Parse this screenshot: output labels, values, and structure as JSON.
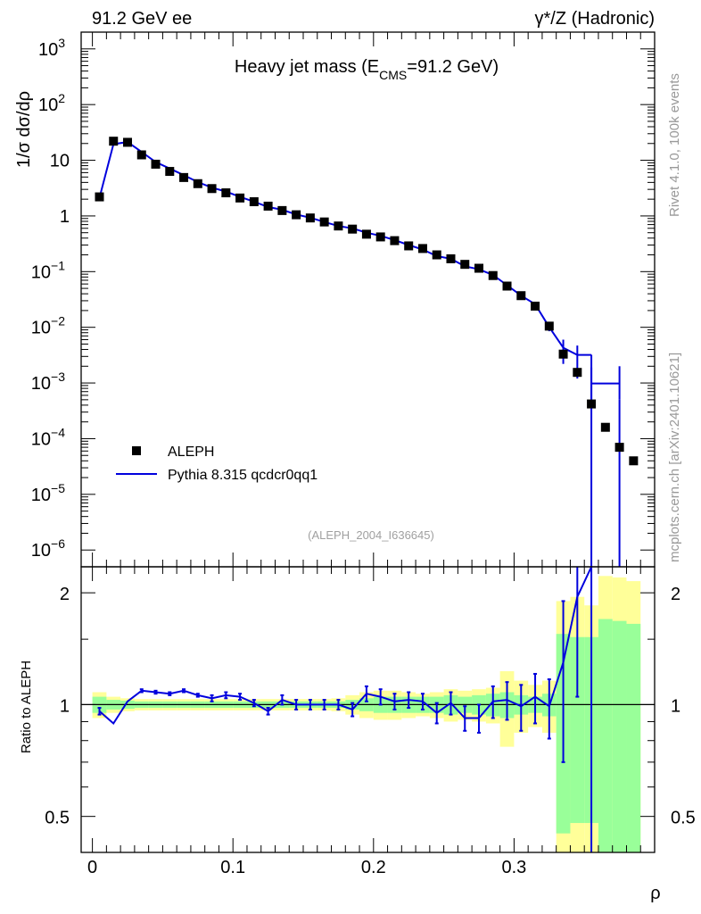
{
  "header": {
    "left_label": "91.2 GeV ee",
    "right_label": "γ*/Z (Hadronic)"
  },
  "side": {
    "version_label": "Rivet 4.1.0,  100k events",
    "source_label": "mcplots.cern.ch [arXiv:2401.10621]"
  },
  "chart_data": [
    {
      "type": "scatter",
      "title_prefix": "Heavy jet mass (E",
      "title_sub": "CMS",
      "title_suffix": "=91.2 GeV)",
      "ylabel": "1/σ  dσ/dρ",
      "yscale": "log",
      "ylim": [
        5e-07,
        2000
      ],
      "xlim": [
        -0.008,
        0.4
      ],
      "watermark": "(ALEPH_2004_I636645)",
      "y_ticks": [
        {
          "value": 1000,
          "base": "10",
          "exp": "3"
        },
        {
          "value": 100,
          "base": "10",
          "exp": "2"
        },
        {
          "value": 10,
          "base": "10",
          "exp": ""
        },
        {
          "value": 1,
          "base": "1",
          "exp": ""
        },
        {
          "value": 0.1,
          "base": "10",
          "exp": "−1"
        },
        {
          "value": 0.01,
          "base": "10",
          "exp": "−2"
        },
        {
          "value": 0.001,
          "base": "10",
          "exp": "−3"
        },
        {
          "value": 0.0001,
          "base": "10",
          "exp": "−4"
        },
        {
          "value": 1e-05,
          "base": "10",
          "exp": "−5"
        },
        {
          "value": 1e-06,
          "base": "10",
          "exp": "−6"
        }
      ],
      "legend": [
        {
          "name": "ALEPH",
          "style": "marker",
          "color": "#000000"
        },
        {
          "name": "Pythia 8.315 qcdcr0qq1",
          "style": "line",
          "color": "#0000dd"
        }
      ],
      "series": [
        {
          "name": "ALEPH",
          "x": [
            0.005,
            0.015,
            0.025,
            0.035,
            0.045,
            0.055,
            0.065,
            0.075,
            0.085,
            0.095,
            0.105,
            0.115,
            0.125,
            0.135,
            0.145,
            0.155,
            0.165,
            0.175,
            0.185,
            0.195,
            0.205,
            0.215,
            0.225,
            0.235,
            0.245,
            0.255,
            0.265,
            0.275,
            0.285,
            0.295,
            0.305,
            0.315,
            0.325,
            0.335,
            0.345,
            0.355,
            0.365,
            0.375,
            0.385
          ],
          "y": [
            2.2,
            22,
            21,
            12.5,
            8.5,
            6.3,
            4.9,
            3.8,
            3.1,
            2.6,
            2.1,
            1.8,
            1.5,
            1.25,
            1.05,
            0.92,
            0.78,
            0.66,
            0.58,
            0.47,
            0.42,
            0.36,
            0.29,
            0.26,
            0.2,
            0.17,
            0.135,
            0.115,
            0.085,
            0.055,
            0.037,
            0.024,
            0.0105,
            0.0033,
            0.00155,
            0.00042,
            0.00016,
            7e-05,
            4e-05
          ]
        },
        {
          "name": "Pythia 8.315 qcdcr0qq1",
          "x": [
            0.005,
            0.015,
            0.025,
            0.035,
            0.045,
            0.055,
            0.065,
            0.075,
            0.085,
            0.095,
            0.105,
            0.115,
            0.125,
            0.135,
            0.145,
            0.155,
            0.165,
            0.175,
            0.185,
            0.195,
            0.205,
            0.215,
            0.225,
            0.235,
            0.245,
            0.255,
            0.265,
            0.275,
            0.285,
            0.295,
            0.305,
            0.315,
            0.325,
            0.335,
            0.345
          ],
          "y": [
            2.1,
            19.5,
            21.3,
            14.1,
            9.3,
            7.1,
            5.4,
            4.05,
            3.22,
            2.74,
            2.2,
            1.81,
            1.45,
            1.29,
            1.06,
            0.93,
            0.78,
            0.66,
            0.6,
            0.5,
            0.44,
            0.37,
            0.3,
            0.25,
            0.19,
            0.17,
            0.125,
            0.11,
            0.087,
            0.057,
            0.037,
            0.026,
            0.0101,
            0.0043,
            0.0032
          ],
          "last_bin": {
            "x_from": 0.355,
            "x_to": 0.375,
            "y": 0.00098
          },
          "drop_at": 0.355
        }
      ]
    },
    {
      "type": "line",
      "ylabel": "Ratio to ALEPH",
      "xlabel": "ρ",
      "yscale": "log",
      "ylim": [
        0.4,
        2.35
      ],
      "xlim": [
        -0.008,
        0.4
      ],
      "y_ticks": [
        {
          "value": 2,
          "label": "2"
        },
        {
          "value": 1,
          "label": "1"
        },
        {
          "value": 0.5,
          "label": "0.5"
        }
      ],
      "x_ticks": [
        {
          "value": 0,
          "label": "0"
        },
        {
          "value": 0.1,
          "label": "0.1"
        },
        {
          "value": 0.2,
          "label": "0.2"
        },
        {
          "value": 0.3,
          "label": "0.3"
        }
      ],
      "bands": {
        "bin_low": [
          0,
          0.01,
          0.02,
          0.03,
          0.04,
          0.05,
          0.06,
          0.07,
          0.08,
          0.09,
          0.1,
          0.11,
          0.12,
          0.13,
          0.14,
          0.15,
          0.16,
          0.17,
          0.18,
          0.19,
          0.2,
          0.21,
          0.22,
          0.23,
          0.24,
          0.25,
          0.26,
          0.27,
          0.28,
          0.29,
          0.3,
          0.31,
          0.32,
          0.33,
          0.34,
          0.35,
          0.36,
          0.37,
          0.38
        ],
        "green_half": [
          0.05,
          0.03,
          0.025,
          0.02,
          0.02,
          0.02,
          0.02,
          0.02,
          0.02,
          0.02,
          0.02,
          0.02,
          0.02,
          0.02,
          0.02,
          0.02,
          0.02,
          0.02,
          0.03,
          0.04,
          0.05,
          0.05,
          0.05,
          0.05,
          0.05,
          0.06,
          0.05,
          0.06,
          0.07,
          0.08,
          0.06,
          0.05,
          0.07,
          0.55,
          0.52,
          0.52,
          0.7,
          0.68,
          0.65
        ],
        "yellow_half": [
          0.08,
          0.05,
          0.04,
          0.035,
          0.035,
          0.035,
          0.035,
          0.035,
          0.035,
          0.035,
          0.035,
          0.035,
          0.035,
          0.035,
          0.035,
          0.035,
          0.035,
          0.04,
          0.06,
          0.08,
          0.09,
          0.09,
          0.08,
          0.07,
          0.08,
          0.1,
          0.09,
          0.1,
          0.11,
          0.23,
          0.16,
          0.13,
          0.16,
          0.9,
          0.95,
          0.85,
          1.22,
          1.2,
          1.15
        ]
      },
      "series": [
        {
          "name": "Pythia 8.315 qcdcr0qq1",
          "x": [
            0.005,
            0.015,
            0.025,
            0.035,
            0.045,
            0.055,
            0.065,
            0.075,
            0.085,
            0.095,
            0.105,
            0.115,
            0.125,
            0.135,
            0.145,
            0.155,
            0.165,
            0.175,
            0.185,
            0.195,
            0.205,
            0.215,
            0.225,
            0.235,
            0.245,
            0.255,
            0.265,
            0.275,
            0.285,
            0.295,
            0.305,
            0.315,
            0.325,
            0.335,
            0.345
          ],
          "y": [
            0.96,
            0.89,
            1.02,
            1.09,
            1.08,
            1.07,
            1.09,
            1.06,
            1.04,
            1.06,
            1.05,
            1.01,
            0.96,
            1.03,
            1.0,
            1.0,
            1.0,
            1.0,
            0.97,
            1.07,
            1.05,
            1.02,
            1.03,
            1.02,
            0.95,
            1.01,
            0.92,
            0.92,
            1.02,
            1.03,
            0.99,
            1.05,
            0.99,
            1.3,
            1.95
          ],
          "yerr": [
            0.02,
            0.0,
            0.0,
            0.01,
            0.01,
            0.01,
            0.01,
            0.01,
            0.02,
            0.02,
            0.02,
            0.02,
            0.02,
            0.03,
            0.03,
            0.03,
            0.03,
            0.03,
            0.04,
            0.05,
            0.05,
            0.05,
            0.05,
            0.05,
            0.06,
            0.07,
            0.07,
            0.08,
            0.1,
            0.12,
            0.14,
            0.16,
            0.18,
            0.6,
            0.9
          ],
          "drop_at": 0.355
        }
      ]
    }
  ]
}
